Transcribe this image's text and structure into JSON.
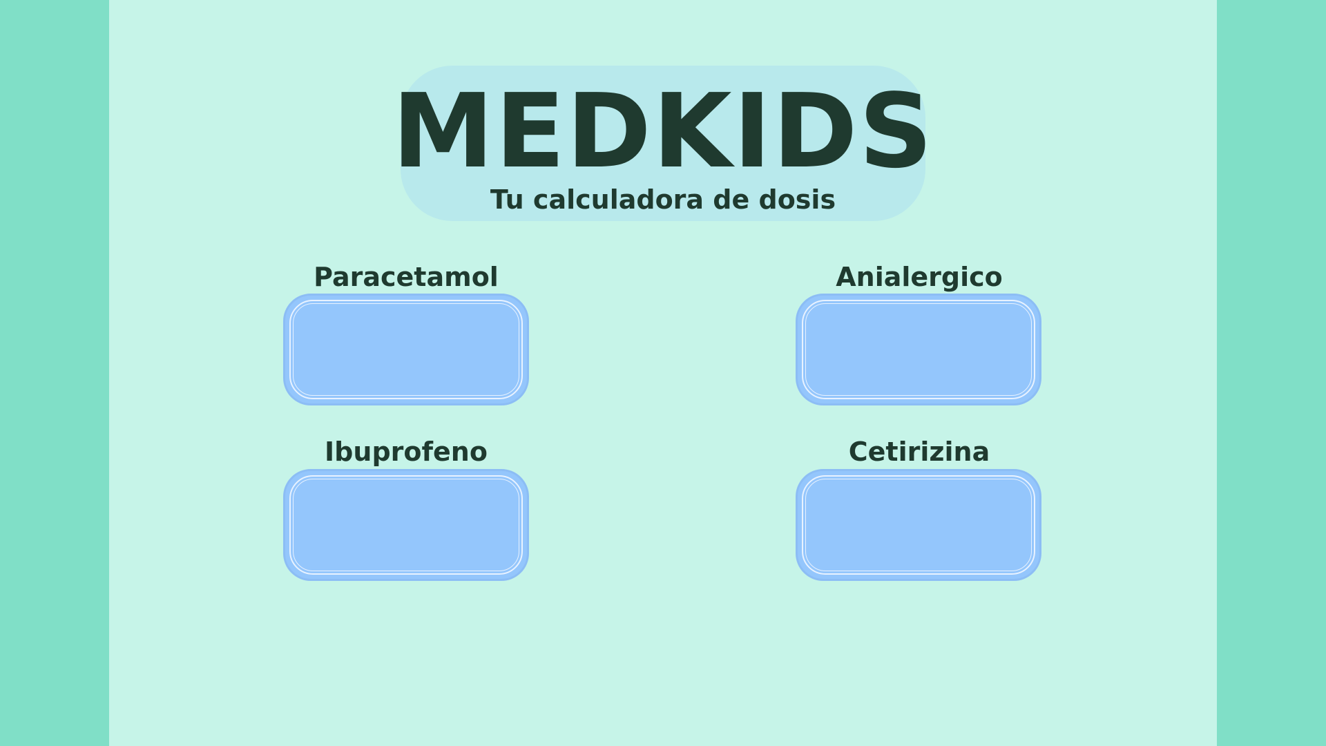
{
  "app": {
    "title": "MEDKIDS",
    "subtitle": "Tu calculadora de dosis"
  },
  "colors": {
    "outer_background": "#80dfc7",
    "panel_background": "#c6f4e8",
    "title_pill": "#b8e9ec",
    "text": "#1f3a2f",
    "dose_box": "#94c6fc"
  },
  "medications": [
    {
      "label": "Paracetamol",
      "value": ""
    },
    {
      "label": "Anialergico",
      "value": ""
    },
    {
      "label": "Ibuprofeno",
      "value": ""
    },
    {
      "label": "Cetirizina",
      "value": ""
    }
  ]
}
